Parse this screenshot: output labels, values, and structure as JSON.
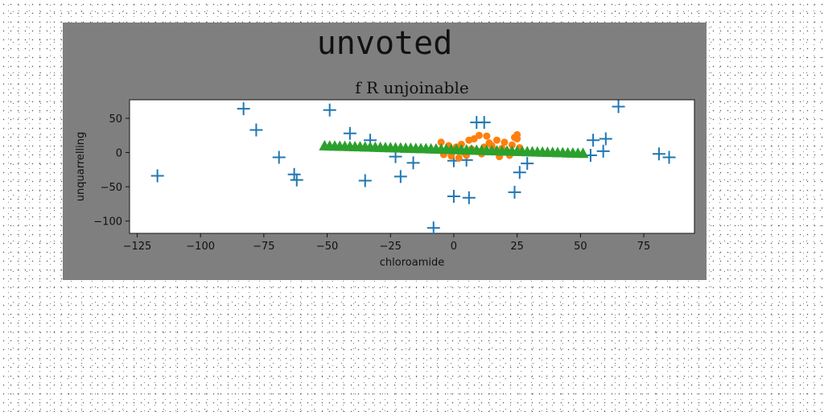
{
  "figure": {
    "suptitle": "unvoted",
    "panel_color": "#7f7f7f"
  },
  "chart_data": {
    "type": "scatter",
    "title": "f R unjoinable",
    "xlabel": "chloroamide",
    "ylabel": "unquarrelling",
    "xlim": [
      -128,
      95
    ],
    "ylim": [
      -118,
      77
    ],
    "xticks": [
      -125,
      -100,
      -75,
      -50,
      -25,
      0,
      25,
      50,
      75
    ],
    "xtick_labels": [
      "−125",
      "−100",
      "−75",
      "−50",
      "−25",
      "0",
      "25",
      "50",
      "75"
    ],
    "yticks": [
      50,
      0,
      -50,
      -100
    ],
    "ytick_labels": [
      "50",
      "0",
      "−50",
      "−100"
    ],
    "grid": false,
    "series": [
      {
        "marker": "plus",
        "color": "#1f77b4",
        "points": [
          [
            -117,
            -34
          ],
          [
            -83,
            64
          ],
          [
            -78,
            33
          ],
          [
            -69,
            -7
          ],
          [
            -63,
            -32
          ],
          [
            -62,
            -40
          ],
          [
            -49,
            62
          ],
          [
            -41,
            28
          ],
          [
            -35,
            -41
          ],
          [
            -33,
            18
          ],
          [
            -23,
            -6
          ],
          [
            -21,
            -35
          ],
          [
            -16,
            -15
          ],
          [
            -8,
            -110
          ],
          [
            0,
            -12
          ],
          [
            0,
            -64
          ],
          [
            5,
            -11
          ],
          [
            6,
            -66
          ],
          [
            9,
            44
          ],
          [
            12,
            44
          ],
          [
            24,
            -58
          ],
          [
            26,
            -29
          ],
          [
            29,
            -16
          ],
          [
            54,
            -4
          ],
          [
            55,
            18
          ],
          [
            59,
            2
          ],
          [
            60,
            20
          ],
          [
            65,
            67
          ],
          [
            81,
            -2
          ],
          [
            85,
            -7
          ]
        ]
      },
      {
        "marker": "circle",
        "color": "#ff7f0e",
        "points": [
          [
            -5,
            15
          ],
          [
            -4,
            -3
          ],
          [
            -2,
            10
          ],
          [
            -1,
            -5
          ],
          [
            0,
            2
          ],
          [
            1,
            8
          ],
          [
            2,
            -8
          ],
          [
            3,
            12
          ],
          [
            4,
            0
          ],
          [
            5,
            -4
          ],
          [
            6,
            18
          ],
          [
            7,
            5
          ],
          [
            8,
            20
          ],
          [
            9,
            3
          ],
          [
            10,
            25
          ],
          [
            11,
            -2
          ],
          [
            12,
            8
          ],
          [
            13,
            24
          ],
          [
            14,
            14
          ],
          [
            15,
            10
          ],
          [
            16,
            4
          ],
          [
            17,
            18
          ],
          [
            18,
            -6
          ],
          [
            19,
            6
          ],
          [
            20,
            15
          ],
          [
            21,
            2
          ],
          [
            22,
            -4
          ],
          [
            23,
            11
          ],
          [
            24,
            22
          ],
          [
            25,
            20
          ],
          [
            25,
            26
          ],
          [
            26,
            7
          ]
        ]
      },
      {
        "marker": "triangle",
        "color": "#2ca02c",
        "x_start": -51,
        "x_end": 51,
        "count": 52,
        "y_start": 9,
        "y_end": -2
      }
    ]
  }
}
